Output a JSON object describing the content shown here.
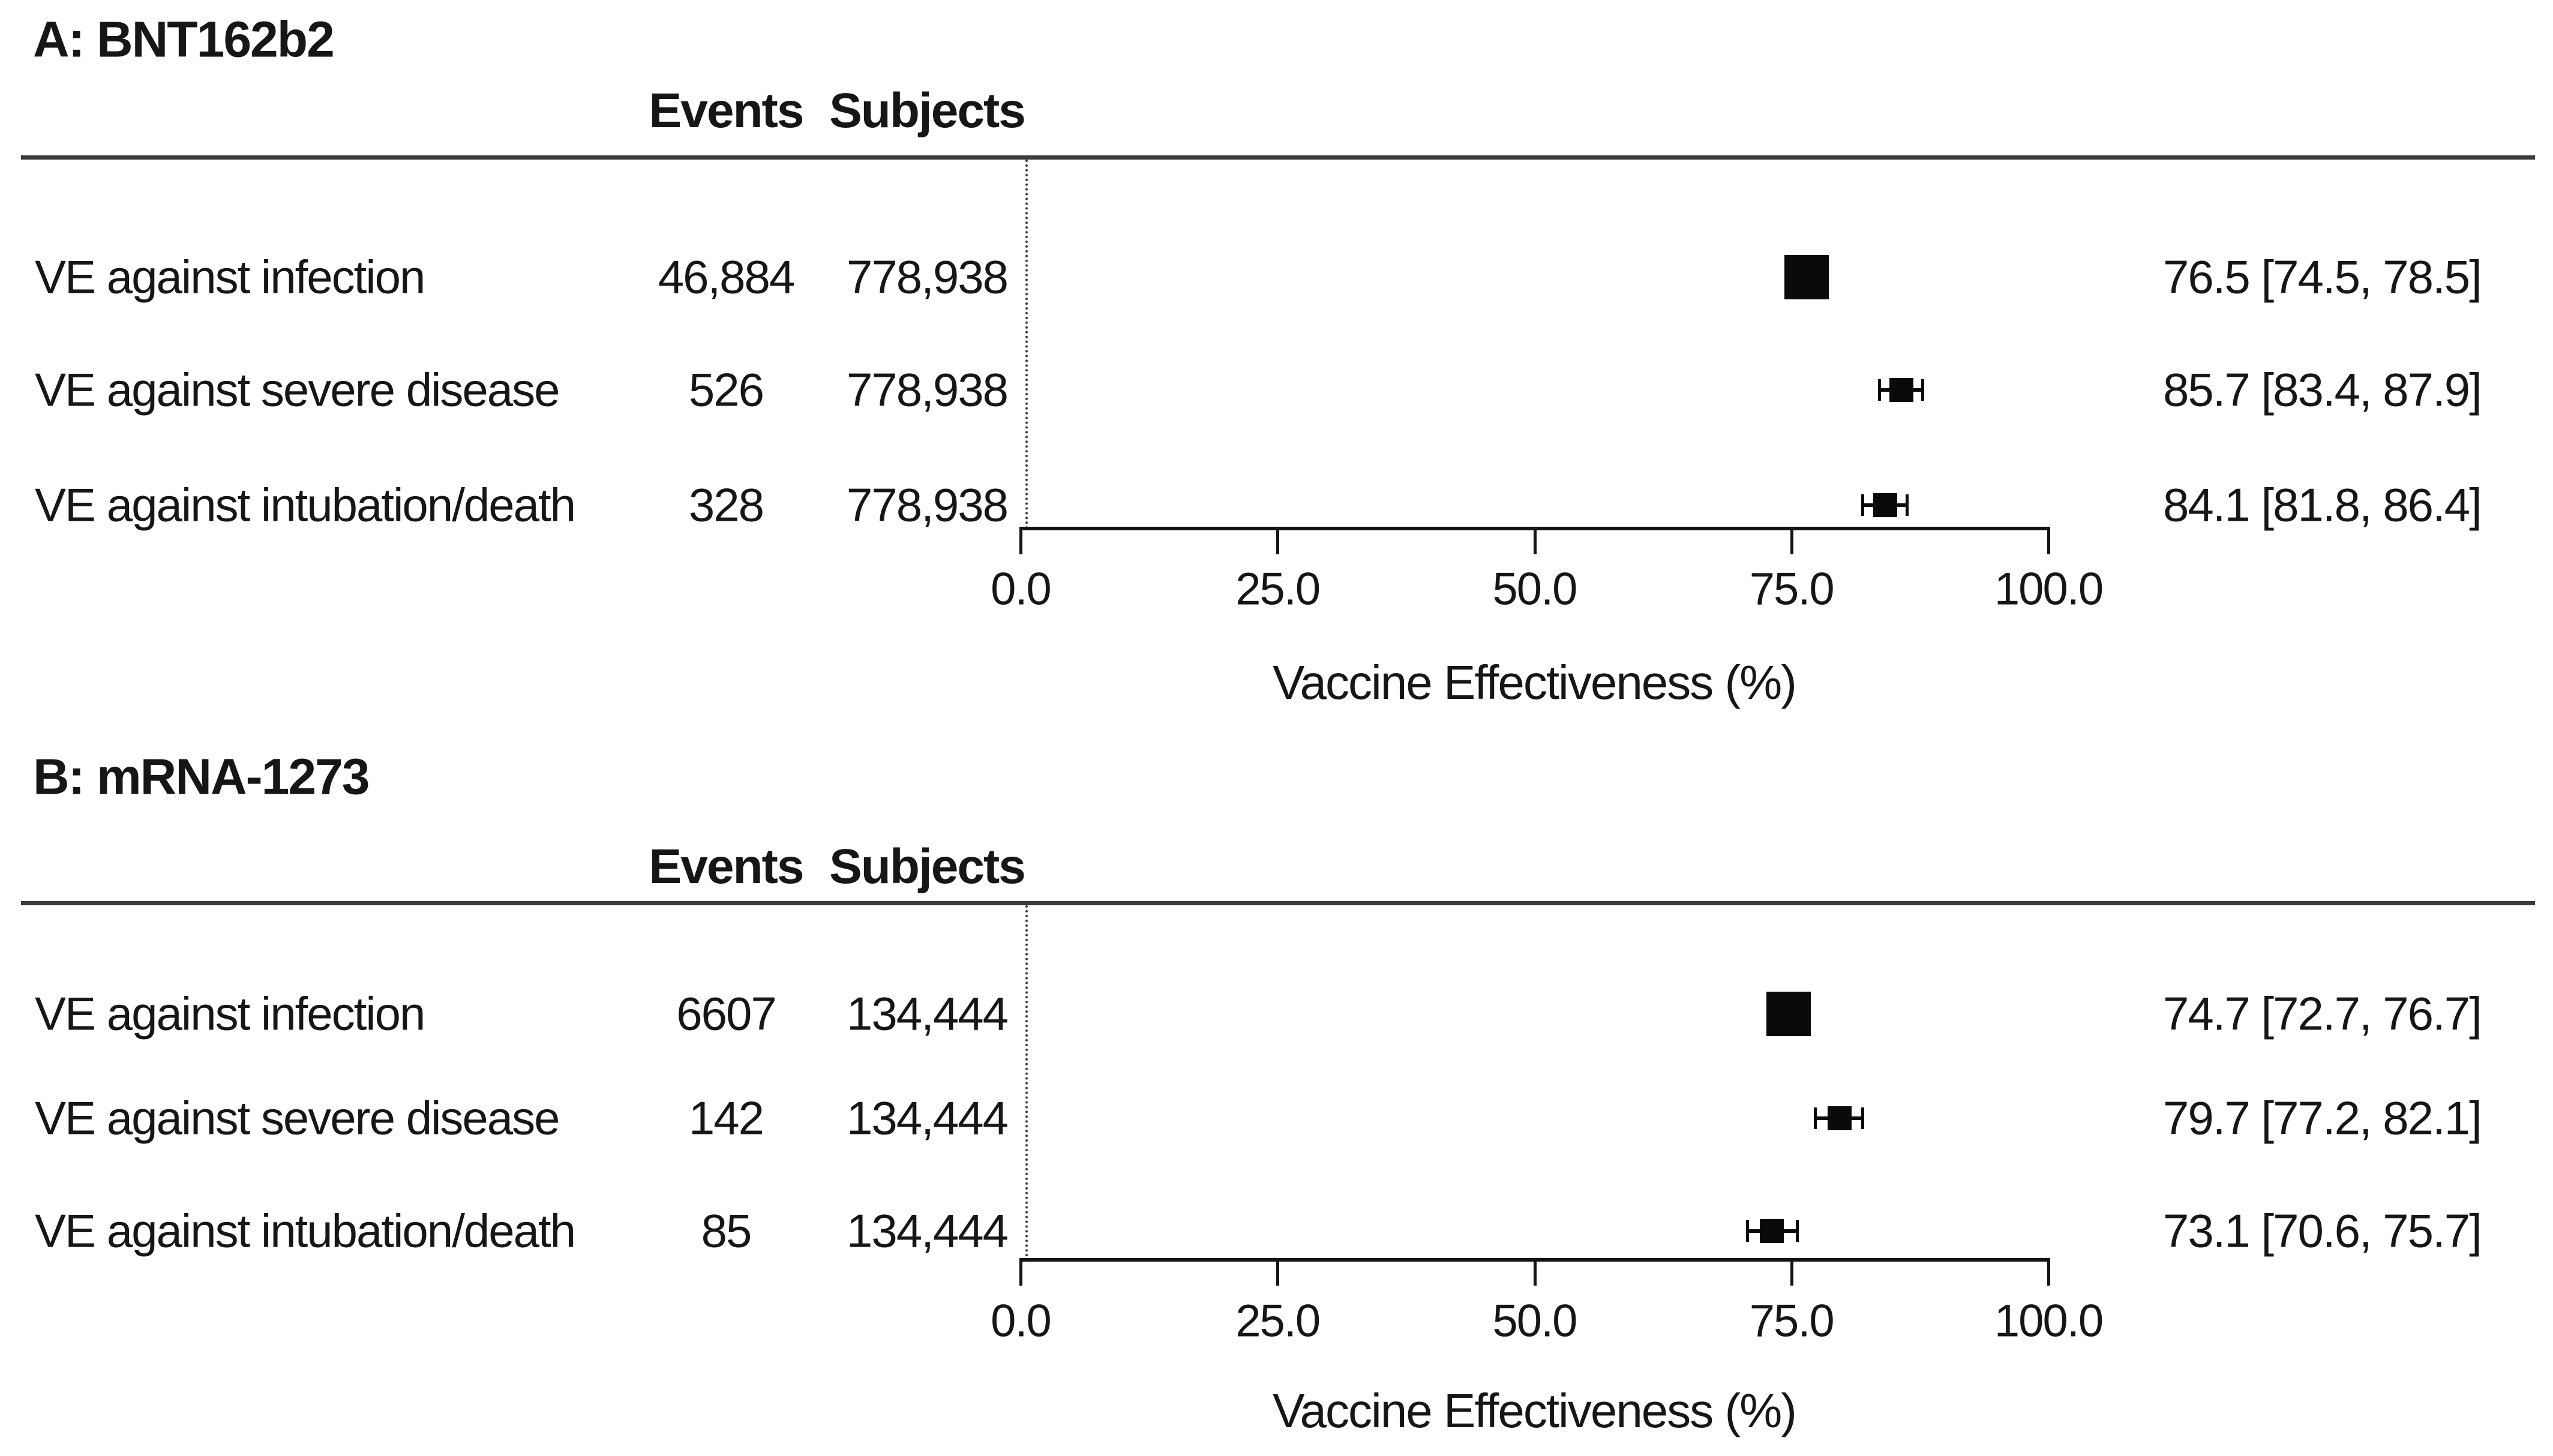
{
  "chart_data": [
    {
      "type": "scatter",
      "panel": "A",
      "title": "A: BNT162b2",
      "xlabel": "Vaccine Effectiveness (%)",
      "xlim": [
        0,
        100
      ],
      "xtick_values": [
        0,
        25,
        50,
        75,
        100
      ],
      "xtick_labels": [
        "0.0",
        "25.0",
        "50.0",
        "75.0",
        "100.0"
      ],
      "columns": {
        "events": "Events",
        "subjects": "Subjects"
      },
      "marker_color": "#000000",
      "rows": [
        {
          "label": "VE against infection",
          "events": "46,884",
          "subjects": "778,938",
          "ve": 76.5,
          "ci_low": 74.5,
          "ci_high": 78.5,
          "estimate": "76.5 [74.5, 78.5]",
          "marker_size": "large"
        },
        {
          "label": "VE against severe disease",
          "events": "526",
          "subjects": "778,938",
          "ve": 85.7,
          "ci_low": 83.4,
          "ci_high": 87.9,
          "estimate": "85.7 [83.4, 87.9]",
          "marker_size": "small"
        },
        {
          "label": "VE against intubation/death",
          "events": "328",
          "subjects": "778,938",
          "ve": 84.1,
          "ci_low": 81.8,
          "ci_high": 86.4,
          "estimate": "84.1 [81.8, 86.4]",
          "marker_size": "small"
        }
      ]
    },
    {
      "type": "scatter",
      "panel": "B",
      "title": "B: mRNA-1273",
      "xlabel": "Vaccine Effectiveness (%)",
      "xlim": [
        0,
        100
      ],
      "xtick_values": [
        0,
        25,
        50,
        75,
        100
      ],
      "xtick_labels": [
        "0.0",
        "25.0",
        "50.0",
        "75.0",
        "100.0"
      ],
      "columns": {
        "events": "Events",
        "subjects": "Subjects"
      },
      "marker_color": "#000000",
      "rows": [
        {
          "label": "VE against infection",
          "events": "6607",
          "subjects": "134,444",
          "ve": 74.7,
          "ci_low": 72.7,
          "ci_high": 76.7,
          "estimate": "74.7 [72.7, 76.7]",
          "marker_size": "large"
        },
        {
          "label": "VE against severe disease",
          "events": "142",
          "subjects": "134,444",
          "ve": 79.7,
          "ci_low": 77.2,
          "ci_high": 82.1,
          "estimate": "79.7 [77.2, 82.1]",
          "marker_size": "small"
        },
        {
          "label": "VE against intubation/death",
          "events": "85",
          "subjects": "134,444",
          "ve": 73.1,
          "ci_low": 70.6,
          "ci_high": 75.7,
          "estimate": "73.1 [70.6, 75.7]",
          "marker_size": "small"
        }
      ]
    }
  ]
}
